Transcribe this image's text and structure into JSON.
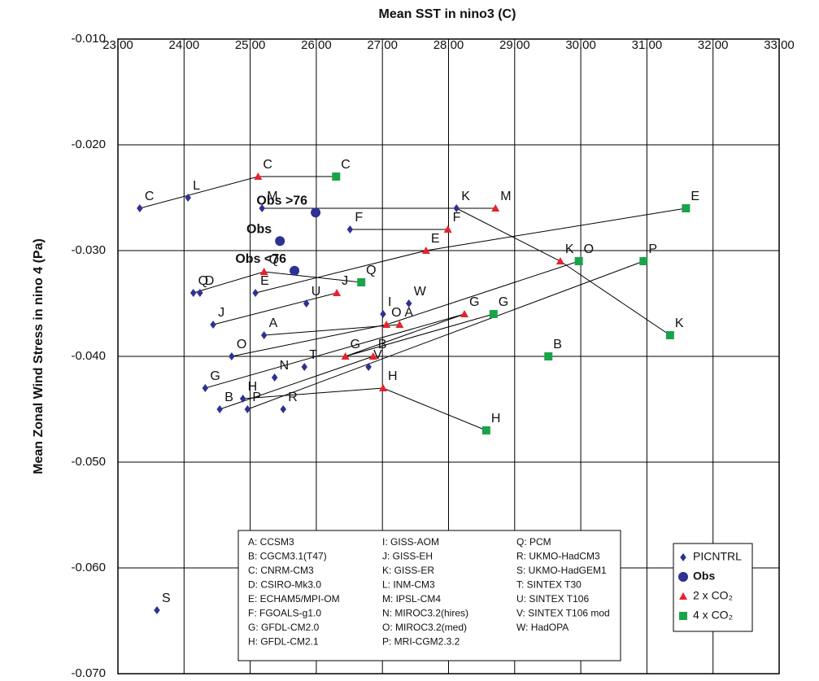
{
  "chart_data": {
    "type": "scatter",
    "title": "Mean SST in nino3 (C)",
    "y_label": "Mean Zonal Wind Stress in nino 4 (Pa)",
    "xlim": [
      23,
      33
    ],
    "ylim": [
      -0.07,
      -0.01
    ],
    "xticks": [
      {
        "value": 23,
        "label": "23.00"
      },
      {
        "value": 24,
        "label": "24.00"
      },
      {
        "value": 25,
        "label": "25.00"
      },
      {
        "value": 26,
        "label": "26.00"
      },
      {
        "value": 27,
        "label": "27.00"
      },
      {
        "value": 28,
        "label": "28.00"
      },
      {
        "value": 29,
        "label": "29.00"
      },
      {
        "value": 30,
        "label": "30.00"
      },
      {
        "value": 31,
        "label": "31.00"
      },
      {
        "value": 32,
        "label": "32.00"
      },
      {
        "value": 33,
        "label": "33.00"
      }
    ],
    "yticks": [
      {
        "value": -0.01,
        "label": "-0.010"
      },
      {
        "value": -0.02,
        "label": "-0.020"
      },
      {
        "value": -0.03,
        "label": "-0.030"
      },
      {
        "value": -0.04,
        "label": "-0.040"
      },
      {
        "value": -0.05,
        "label": "-0.050"
      },
      {
        "value": -0.06,
        "label": "-0.060"
      },
      {
        "value": -0.07,
        "label": "-0.070"
      }
    ],
    "grid": true,
    "series": [
      {
        "name": "PICNTRL",
        "color": "#2e3192",
        "marker": "diamond",
        "labels": [
          "C",
          "L",
          "M",
          "K",
          "F",
          "Q",
          "D",
          "E",
          "U",
          "W",
          "J",
          "I",
          "A",
          "O",
          "T",
          "V",
          "N",
          "G",
          "H",
          "B",
          "P",
          "R",
          "S"
        ],
        "x": [
          23.33,
          24.06,
          25.18,
          28.12,
          26.51,
          24.14,
          24.24,
          25.08,
          25.85,
          27.4,
          24.44,
          27.01,
          25.21,
          24.72,
          25.82,
          26.79,
          25.37,
          24.32,
          24.89,
          24.54,
          24.96,
          25.5,
          23.59
        ],
        "values": [
          -0.026,
          -0.025,
          -0.026,
          -0.026,
          -0.028,
          -0.034,
          -0.034,
          -0.034,
          -0.035,
          -0.035,
          -0.037,
          -0.036,
          -0.038,
          -0.04,
          -0.041,
          -0.041,
          -0.042,
          -0.043,
          -0.044,
          -0.045,
          -0.045,
          -0.045,
          -0.064
        ]
      },
      {
        "name": "Obs",
        "color": "#2e3192",
        "marker": "circle",
        "labels": [
          "Obs >76",
          "Obs",
          "Obs <76"
        ],
        "x": [
          25.99,
          25.45,
          25.67
        ],
        "values": [
          -0.0264,
          -0.0291,
          -0.0319
        ]
      },
      {
        "name": "2 x CO₂",
        "color": "#e8222a",
        "marker": "triangle",
        "labels": [
          "C",
          "Q",
          "J",
          "M",
          "F",
          "E",
          "K",
          "G",
          "O",
          "A",
          "G",
          "B",
          "H"
        ],
        "x": [
          25.12,
          25.21,
          26.31,
          28.71,
          27.99,
          27.66,
          29.69,
          28.24,
          27.06,
          27.26,
          26.44,
          26.86,
          27.01
        ],
        "values": [
          -0.023,
          -0.032,
          -0.034,
          -0.026,
          -0.028,
          -0.03,
          -0.031,
          -0.036,
          -0.037,
          -0.037,
          -0.04,
          -0.04,
          -0.043
        ]
      },
      {
        "name": "4 x CO₂",
        "color": "#1aa34a",
        "marker": "square",
        "labels": [
          "C",
          "E",
          "Q",
          "K",
          "O",
          "P",
          "G",
          "B",
          "H"
        ],
        "x": [
          26.3,
          31.59,
          26.68,
          31.35,
          29.97,
          30.95,
          28.68,
          29.51,
          28.57
        ],
        "values": [
          -0.023,
          -0.026,
          -0.033,
          -0.038,
          -0.031,
          -0.031,
          -0.036,
          -0.04,
          -0.047
        ]
      }
    ],
    "key": [
      "A: CCSM3",
      "B: CGCM3.1(T47)",
      "C: CNRM-CM3",
      "D: CSIRO-Mk3.0",
      "E: ECHAM5/MPI-OM",
      "F: FGOALS-g1.0",
      "G: GFDL-CM2.0",
      "H: GFDL-CM2.1",
      "I: GISS-AOM",
      "J: GISS-EH",
      "K: GISS-ER",
      "L: INM-CM3",
      "M: IPSL-CM4",
      "N: MIROC3.2(hires)",
      "O: MIROC3.2(med)",
      "P: MRI-CGM2.3.2",
      "Q: PCM",
      "R: UKMO-HadCM3",
      "S: UKMO-HadGEM1",
      "T: SINTEX T30",
      "U: SINTEX T106",
      "V: SINTEX T106 mod",
      "W: HadOPA"
    ]
  }
}
